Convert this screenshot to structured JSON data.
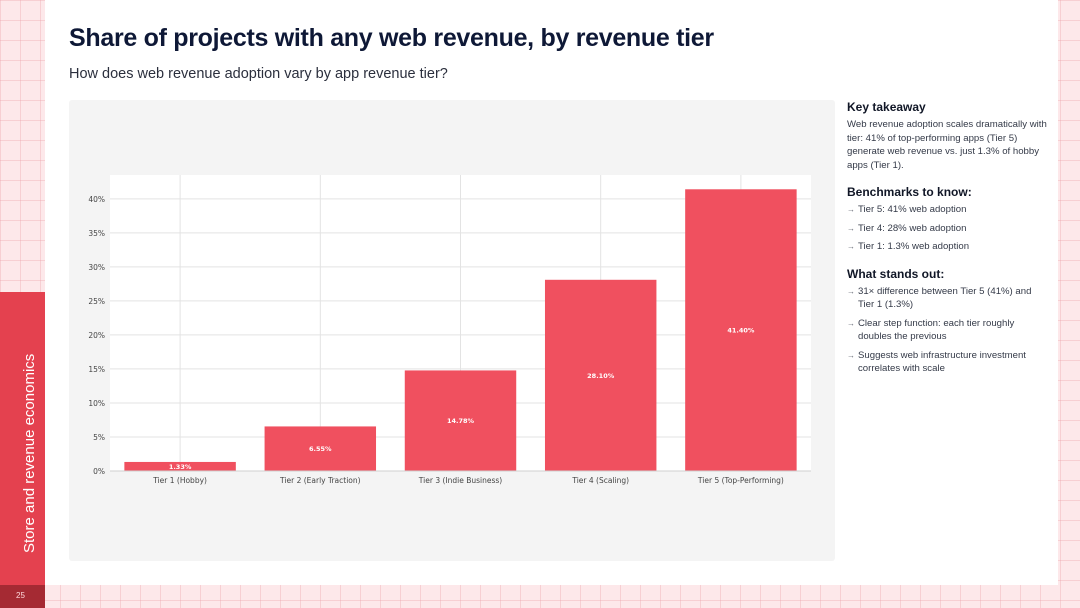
{
  "page": {
    "title": "Share of projects with any web revenue, by revenue tier",
    "subtitle": "How does web revenue adoption vary by app revenue tier?",
    "section_label": "Store and revenue economics",
    "page_number": "25"
  },
  "notes": {
    "key_takeaway_heading": "Key takeaway",
    "key_takeaway_text": "Web revenue adoption scales dramatically with tier: 41% of top-performing apps (Tier 5) generate web revenue vs. just 1.3% of hobby apps (Tier 1).",
    "benchmarks_heading": "Benchmarks to know:",
    "benchmarks": [
      "Tier 5: 41% web adoption",
      "Tier 4: 28% web adoption",
      "Tier 1: 1.3% web adoption"
    ],
    "stands_out_heading": "What stands out:",
    "stands_out": [
      "31× difference between Tier 5 (41%) and Tier 1 (1.3%)",
      "Clear step function: each tier roughly doubles the previous",
      "Suggests web infrastructure investment correlates with scale"
    ],
    "bullet_icon": "arrow-right-icon"
  },
  "colors": {
    "bar": "#f0505f",
    "accent": "#e4414f",
    "title": "#0e1836"
  },
  "chart_data": {
    "type": "bar",
    "categories": [
      "Tier 1 (Hobby)",
      "Tier 2 (Early Traction)",
      "Tier 3 (Indie Business)",
      "Tier 4 (Scaling)",
      "Tier 5 (Top-Performing)"
    ],
    "values": [
      1.33,
      6.55,
      14.78,
      28.1,
      41.4
    ],
    "data_labels": [
      "1.33%",
      "6.55%",
      "14.78%",
      "28.10%",
      "41.40%"
    ],
    "yticks": [
      0,
      5,
      10,
      15,
      20,
      25,
      30,
      35,
      40
    ],
    "ytick_labels": [
      "0%",
      "5%",
      "10%",
      "15%",
      "20%",
      "25%",
      "30%",
      "35%",
      "40%"
    ],
    "ylim": [
      0,
      43.5
    ],
    "grid": true,
    "legend": false
  }
}
